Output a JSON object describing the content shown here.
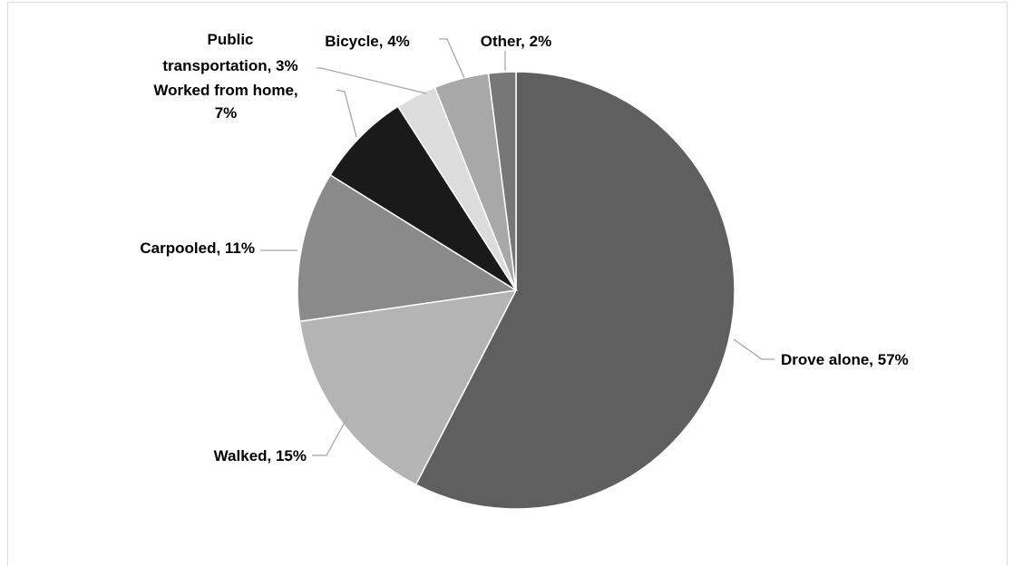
{
  "chart_data": {
    "type": "pie",
    "title": "",
    "slices": [
      {
        "label": "Drove alone, 57%",
        "name": "Drove alone",
        "value": 57,
        "color": "#5f5f5f"
      },
      {
        "label": "Walked, 15%",
        "name": "Walked",
        "value": 15,
        "color": "#b4b4b4"
      },
      {
        "label": "Carpooled, 11%",
        "name": "Carpooled",
        "value": 11,
        "color": "#8a8a8a"
      },
      {
        "label": "Worked from home, 7%",
        "name": "Worked from home",
        "value": 7,
        "color": "#1a1a1a"
      },
      {
        "label": "Public transportation, 3%",
        "name": "Public transportation",
        "value": 3,
        "color": "#dcdcdc"
      },
      {
        "label": "Bicycle, 4%",
        "name": "Bicycle",
        "value": 4,
        "color": "#a8a8a8"
      },
      {
        "label": "Other, 2%",
        "name": "Other",
        "value": 2,
        "color": "#777777"
      }
    ],
    "start_angle": "top (12 o'clock)",
    "direction": "clockwise",
    "legend": "none",
    "data_labels": "outside with leader lines"
  }
}
